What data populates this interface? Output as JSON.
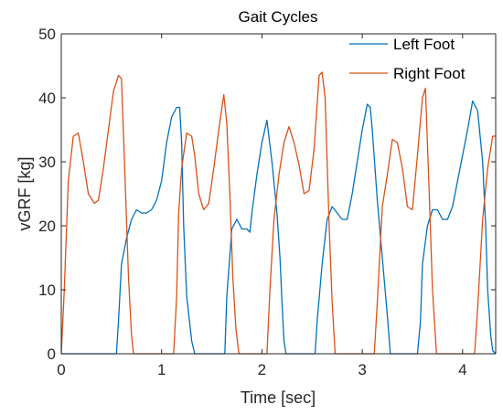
{
  "colors": {
    "left_foot": "#0072BD",
    "right_foot": "#D95319",
    "axis": "#262626"
  },
  "chart_data": {
    "type": "line",
    "title": "Gait Cycles",
    "xlabel": "Time [sec]",
    "ylabel": "vGRF [kg]",
    "xlim": [
      0,
      4.33
    ],
    "ylim": [
      0,
      50
    ],
    "xticks": [
      0,
      1,
      2,
      3,
      4
    ],
    "yticks": [
      0,
      10,
      20,
      30,
      40,
      50
    ],
    "legend_position": "top-right",
    "grid": false,
    "series": [
      {
        "name": "Left Foot",
        "x": [
          0,
          0.55,
          0.57,
          0.6,
          0.65,
          0.7,
          0.75,
          0.8,
          0.85,
          0.9,
          0.95,
          1.0,
          1.05,
          1.1,
          1.15,
          1.18,
          1.2,
          1.22,
          1.25,
          1.3,
          1.33,
          1.63,
          1.65,
          1.7,
          1.75,
          1.8,
          1.85,
          1.88,
          1.9,
          1.95,
          2.0,
          2.05,
          2.1,
          2.15,
          2.18,
          2.2,
          2.22,
          2.24,
          2.53,
          2.55,
          2.6,
          2.65,
          2.7,
          2.75,
          2.8,
          2.85,
          2.9,
          2.95,
          3.0,
          3.05,
          3.08,
          3.1,
          3.15,
          3.2,
          3.25,
          3.28,
          3.55,
          3.58,
          3.6,
          3.65,
          3.7,
          3.75,
          3.8,
          3.85,
          3.9,
          3.95,
          4.0,
          4.05,
          4.1,
          4.15,
          4.2,
          4.23,
          4.25,
          4.28,
          4.3,
          4.33
        ],
        "y": [
          0,
          0,
          5,
          14,
          18,
          21,
          22.5,
          22,
          22,
          22.5,
          24,
          27,
          33,
          37,
          38.5,
          38.5,
          33,
          20,
          9,
          2,
          0,
          0,
          9,
          19.5,
          21,
          19.5,
          19.5,
          19,
          22,
          28,
          33,
          36.5,
          30,
          22,
          15,
          8,
          2,
          0,
          0,
          5,
          14,
          21,
          23,
          22,
          21,
          21,
          25,
          30,
          35,
          39,
          38.5,
          35,
          24,
          15,
          6,
          0,
          0,
          5,
          14,
          20,
          22.5,
          22.5,
          21,
          21,
          23,
          27,
          31,
          35,
          39.5,
          38,
          30,
          20,
          10,
          3,
          0.5,
          0
        ]
      },
      {
        "name": "Right Foot",
        "x": [
          0,
          0.03,
          0.07,
          0.12,
          0.17,
          0.22,
          0.27,
          0.33,
          0.37,
          0.42,
          0.47,
          0.52,
          0.57,
          0.6,
          0.63,
          0.67,
          0.7,
          0.72,
          1.12,
          1.15,
          1.17,
          1.2,
          1.25,
          1.3,
          1.33,
          1.37,
          1.42,
          1.47,
          1.52,
          1.57,
          1.62,
          1.65,
          1.68,
          1.71,
          1.74,
          1.77,
          2.05,
          2.08,
          2.12,
          2.17,
          2.22,
          2.27,
          2.32,
          2.37,
          2.42,
          2.47,
          2.52,
          2.57,
          2.6,
          2.63,
          2.67,
          2.7,
          2.73,
          3.12,
          3.15,
          3.2,
          3.25,
          3.3,
          3.35,
          3.4,
          3.45,
          3.5,
          3.55,
          3.6,
          3.63,
          3.67,
          3.7,
          3.74,
          4.12,
          4.15,
          4.2,
          4.25,
          4.3,
          4.33
        ],
        "y": [
          0,
          10,
          27,
          34,
          34.5,
          30,
          25,
          23.5,
          24,
          29,
          35,
          41,
          43.5,
          43,
          30,
          12,
          3,
          0,
          0,
          9,
          22,
          29,
          34.5,
          34,
          31,
          25,
          22.5,
          23.5,
          29,
          35,
          40.5,
          36,
          25,
          12,
          4,
          0,
          0,
          10,
          21,
          28,
          33,
          35.5,
          33,
          29.5,
          25,
          25.5,
          32,
          43.5,
          44,
          40,
          20,
          8,
          0,
          0,
          8,
          23,
          28,
          33.5,
          33,
          29,
          23,
          22.5,
          31,
          40,
          41.5,
          24,
          10,
          0,
          0,
          7,
          21,
          29,
          34,
          34
        ]
      }
    ]
  }
}
